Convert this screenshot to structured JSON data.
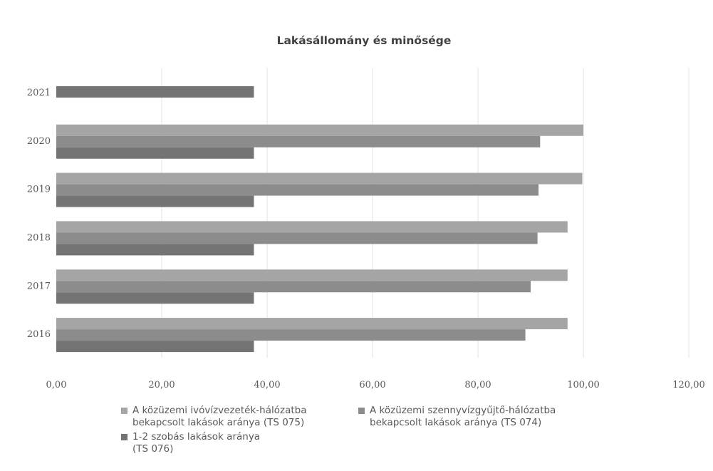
{
  "chart_data": {
    "type": "bar",
    "orientation": "horizontal",
    "title": "Lakásállomány és minősége",
    "categories": [
      "2016",
      "2017",
      "2018",
      "2019",
      "2020",
      "2021"
    ],
    "series": [
      {
        "name": "A közüzemi ivóvízvezeték-hálózatba\nbekapcsolt lakások aránya (TS 075)",
        "color": "#a5a5a5",
        "values": [
          97.0,
          97.0,
          97.0,
          99.8,
          100.0,
          null
        ]
      },
      {
        "name": "A közüzemi szennyvízgyűjtő-hálózatba\nbekapcsolt lakások aránya (TS 074)",
        "color": "#8c8c8c",
        "values": [
          89.0,
          90.0,
          91.3,
          91.5,
          91.8,
          null
        ]
      },
      {
        "name": "1-2 szobás lakások aránya\n(TS 076)",
        "color": "#747474",
        "values": [
          37.5,
          37.5,
          37.5,
          37.5,
          37.5,
          37.5
        ]
      }
    ],
    "xlim": [
      0,
      120
    ],
    "xticks": [
      "0,00",
      "20,00",
      "40,00",
      "60,00",
      "80,00",
      "100,00",
      "120,00"
    ],
    "grid": true,
    "legend_position": "bottom"
  }
}
